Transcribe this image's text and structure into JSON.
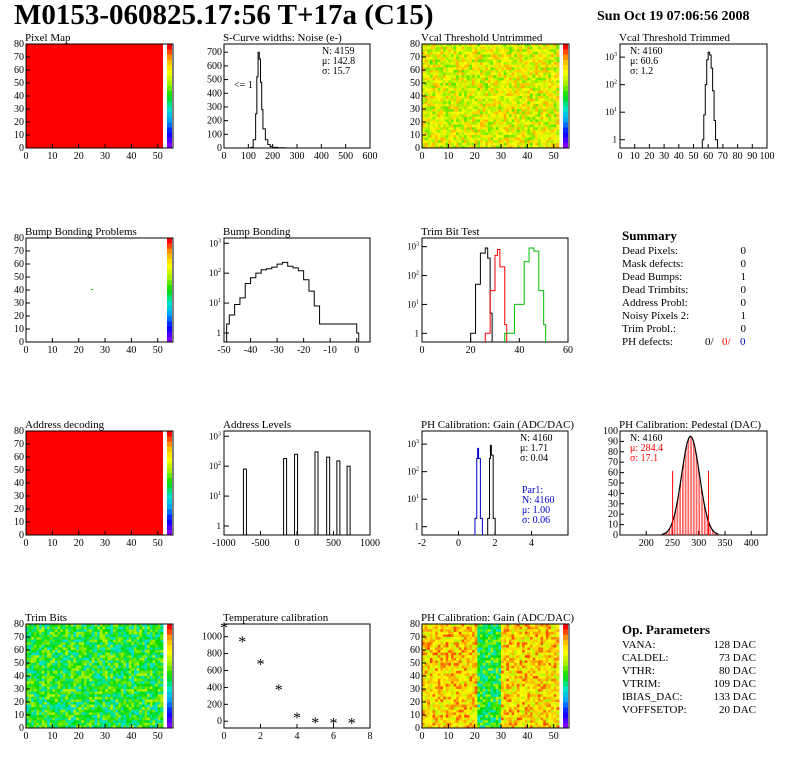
{
  "header": {
    "title": "M0153-060825.17:56 T+17a (C15)",
    "date": "Sun Oct 19 07:06:56 2008"
  },
  "colors": {
    "red": "#ff0000",
    "blue": "#0000cc",
    "green": "#00bb00",
    "black": "#000000"
  },
  "summary": {
    "title": "Summary",
    "rows": [
      {
        "label": "Dead Pixels:",
        "value": "0"
      },
      {
        "label": "Mask defects:",
        "value": "0"
      },
      {
        "label": "Dead Bumps:",
        "value": "1"
      },
      {
        "label": "Dead Trimbits:",
        "value": "0"
      },
      {
        "label": "Address Probl:",
        "value": "0"
      },
      {
        "label": "Noisy Pixels 2:",
        "value": "1"
      },
      {
        "label": "Trim Probl.:",
        "value": "0"
      }
    ],
    "ph_defects": {
      "label": "PH defects:",
      "v1": "0/",
      "v2": "0/",
      "v3": "0"
    }
  },
  "op_parameters": {
    "title": "Op. Parameters",
    "rows": [
      {
        "label": "VANA:",
        "value": "128 DAC"
      },
      {
        "label": "CALDEL:",
        "value": "73 DAC"
      },
      {
        "label": "VTHR:",
        "value": "80 DAC"
      },
      {
        "label": "VTRIM:",
        "value": "109 DAC"
      },
      {
        "label": "IBIAS_DAC:",
        "value": "133 DAC"
      },
      {
        "label": "VOFFSETOP:",
        "value": "20 DAC"
      }
    ]
  },
  "chart_data": [
    {
      "id": "pixel-map",
      "type": "heatmap",
      "title": "Pixel Map",
      "xlim": [
        0,
        52
      ],
      "ylim": [
        0,
        80
      ],
      "xticks": [
        0,
        10,
        20,
        30,
        40,
        50
      ],
      "yticks": [
        0,
        10,
        20,
        30,
        40,
        50,
        60,
        70,
        80
      ],
      "fill": "uniform",
      "value": 10,
      "zlim": [
        0,
        10
      ],
      "palette_labels": "0..10"
    },
    {
      "id": "scurve-noise",
      "type": "histogram",
      "title": "S-Curve widths: Noise (e-)",
      "xlim": [
        0,
        600
      ],
      "ylim": [
        0,
        760
      ],
      "xticks": [
        0,
        100,
        200,
        300,
        400,
        500,
        600
      ],
      "yticks": [
        0,
        100,
        200,
        300,
        400,
        500,
        600,
        700
      ],
      "x": [
        100,
        110,
        120,
        130,
        135,
        140,
        145,
        150,
        155,
        160,
        170,
        180,
        190,
        200,
        220,
        250
      ],
      "y": [
        0,
        5,
        60,
        250,
        520,
        700,
        650,
        480,
        280,
        140,
        60,
        25,
        10,
        5,
        2,
        0
      ],
      "stats": [
        "N: 4159",
        "μ: 142.8",
        "σ: 15.7"
      ],
      "annotation": "<= 1"
    },
    {
      "id": "vcal-untrimmed",
      "type": "heatmap",
      "title": "Vcal Threshold Untrimmed",
      "xlim": [
        0,
        52
      ],
      "ylim": [
        0,
        80
      ],
      "xticks": [
        0,
        10,
        20,
        30,
        40,
        50
      ],
      "yticks": [
        0,
        10,
        20,
        30,
        40,
        50,
        60,
        70,
        80
      ],
      "fill": "noise-orange",
      "zlim": [
        0,
        130
      ]
    },
    {
      "id": "vcal-trimmed",
      "type": "histogram",
      "title": "Vcal Threshold Trimmed",
      "log": true,
      "xlim": [
        0,
        100
      ],
      "ylim": [
        0.5,
        3000
      ],
      "xticks": [
        0,
        10,
        20,
        30,
        40,
        50,
        60,
        70,
        80,
        90,
        100
      ],
      "x": [
        56,
        57,
        58,
        59,
        60,
        61,
        62,
        63,
        64,
        65
      ],
      "y": [
        1,
        8,
        100,
        800,
        1500,
        1200,
        400,
        60,
        5,
        1
      ],
      "stats": [
        "N: 4160",
        "μ: 60.6",
        "σ: 1.2"
      ]
    },
    {
      "id": "bump-problems",
      "type": "heatmap",
      "title": "Bump Bonding Problems",
      "xlim": [
        0,
        52
      ],
      "ylim": [
        0,
        80
      ],
      "xticks": [
        0,
        10,
        20,
        30,
        40,
        50
      ],
      "yticks": [
        0,
        10,
        20,
        30,
        40,
        50,
        60,
        70,
        80
      ],
      "fill": "empty",
      "marks": [
        {
          "x": 25,
          "y": 40
        }
      ],
      "zlim": [
        0,
        5
      ]
    },
    {
      "id": "bump-bonding",
      "type": "histogram",
      "title": "Bump Bonding",
      "log": true,
      "xlim": [
        -50,
        5
      ],
      "ylim": [
        0.5,
        1500
      ],
      "xticks": [
        -50,
        -40,
        -30,
        -20,
        -10,
        0
      ],
      "x": [
        -49,
        -48,
        -46,
        -44,
        -42,
        -40,
        -38,
        -36,
        -34,
        -32,
        -30,
        -28,
        -26,
        -24,
        -22,
        -20,
        -18,
        -16,
        -14,
        0
      ],
      "y": [
        2,
        4,
        9,
        15,
        45,
        70,
        100,
        130,
        140,
        160,
        200,
        230,
        170,
        150,
        120,
        60,
        25,
        8,
        2,
        1
      ]
    },
    {
      "id": "trim-bit-test",
      "type": "histogram",
      "title": "Trim Bit Test",
      "log": true,
      "xlim": [
        0,
        60
      ],
      "ylim": [
        0.5,
        2000
      ],
      "xticks": [
        0,
        20,
        40,
        60
      ],
      "series": [
        {
          "color": "black",
          "x": [
            20,
            22,
            24,
            26,
            27,
            28
          ],
          "y": [
            1,
            50,
            600,
            900,
            400,
            5
          ]
        },
        {
          "color": "red",
          "x": [
            26,
            28,
            30,
            31,
            32,
            34
          ],
          "y": [
            1,
            30,
            500,
            800,
            200,
            2
          ]
        },
        {
          "color": "green",
          "x": [
            34,
            38,
            42,
            44,
            46,
            48,
            50
          ],
          "y": [
            1,
            10,
            300,
            900,
            700,
            30,
            2
          ]
        }
      ]
    },
    {
      "id": "address-decoding",
      "type": "heatmap",
      "title": "Address decoding",
      "xlim": [
        0,
        52
      ],
      "ylim": [
        0,
        80
      ],
      "xticks": [
        0,
        10,
        20,
        30,
        40,
        50
      ],
      "yticks": [
        0,
        10,
        20,
        30,
        40,
        50,
        60,
        70,
        80
      ],
      "fill": "uniform",
      "value": 1,
      "zlim": [
        0,
        1
      ]
    },
    {
      "id": "address-levels",
      "type": "histogram",
      "title": "Address Levels",
      "log": true,
      "xlim": [
        -1000,
        1000
      ],
      "ylim": [
        0.5,
        1500
      ],
      "xticks": [
        -1000,
        -500,
        0,
        500,
        1000
      ],
      "peaks": [
        -720,
        -170,
        -20,
        260,
        420,
        560,
        700
      ],
      "peak_heights": [
        80,
        180,
        250,
        300,
        200,
        150,
        100
      ]
    },
    {
      "id": "ph-gain",
      "type": "histogram",
      "title": "PH Calibration: Gain (ADC/DAC)",
      "log": true,
      "xlim": [
        -2,
        6
      ],
      "ylim": [
        0.5,
        3000
      ],
      "xticks": [
        -2,
        0,
        2,
        4
      ],
      "series": [
        {
          "color": "black",
          "x": [
            1.6,
            1.7,
            1.75,
            1.8,
            1.9
          ],
          "y": [
            2,
            300,
            900,
            400,
            2
          ]
        },
        {
          "color": "blue",
          "x": [
            0.9,
            1.0,
            1.05,
            1.1,
            1.2
          ],
          "y": [
            2,
            300,
            700,
            300,
            2
          ]
        }
      ],
      "stats": [
        "N: 4160",
        "μ: 1.71",
        "σ: 0.04"
      ],
      "stats2": [
        "Par1:",
        "N: 4160",
        "μ: 1.00",
        "σ: 0.06"
      ]
    },
    {
      "id": "ph-pedestal",
      "type": "histogram",
      "title": "PH Calibration: Pedestal (DAC)",
      "xlim": [
        150,
        430
      ],
      "ylim": [
        0,
        100
      ],
      "xticks": [
        200,
        250,
        300,
        350,
        400
      ],
      "yticks": [
        0,
        10,
        20,
        30,
        40,
        50,
        60,
        70,
        80,
        90,
        100
      ],
      "gauss": {
        "mu": 284.4,
        "sigma": 17.1,
        "peak": 95
      },
      "stats": [
        "N: 4160",
        "μ: 284.4",
        "σ: 17.1"
      ]
    },
    {
      "id": "trim-bits",
      "type": "heatmap",
      "title": "Trim Bits",
      "xlim": [
        0,
        52
      ],
      "ylim": [
        0,
        80
      ],
      "xticks": [
        0,
        10,
        20,
        30,
        40,
        50
      ],
      "yticks": [
        0,
        10,
        20,
        30,
        40,
        50,
        60,
        70,
        80
      ],
      "fill": "noise-green",
      "zlim": [
        0,
        16
      ]
    },
    {
      "id": "temperature-calibration",
      "type": "scatter",
      "title": "Temperature calibration",
      "xlim": [
        0,
        8
      ],
      "ylim": [
        -80,
        1150
      ],
      "xticks": [
        0,
        2,
        4,
        6,
        8
      ],
      "yticks": [
        0,
        200,
        400,
        600,
        800,
        1000
      ],
      "x": [
        0,
        1,
        2,
        3,
        4,
        5,
        6,
        7
      ],
      "y": [
        1100,
        940,
        670,
        370,
        40,
        -20,
        -25,
        -25
      ]
    },
    {
      "id": "ph-gain-map",
      "type": "heatmap",
      "title": "PH Calibration: Gain (ADC/DAC)",
      "xlim": [
        0,
        52
      ],
      "ylim": [
        0,
        80
      ],
      "xticks": [
        0,
        10,
        20,
        30,
        40,
        50
      ],
      "yticks": [
        0,
        10,
        20,
        30,
        40,
        50,
        60,
        70,
        80
      ],
      "fill": "noise-gain",
      "zlim": [
        1.5,
        2.0
      ]
    }
  ]
}
